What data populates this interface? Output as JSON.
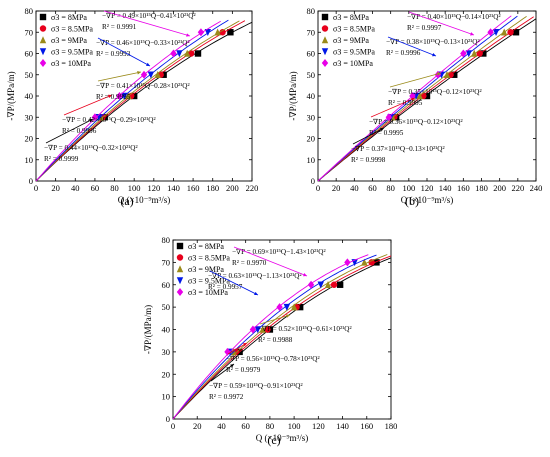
{
  "figure": {
    "panels": [
      {
        "id": "a",
        "label": "(a)"
      },
      {
        "id": "b",
        "label": "(b)"
      },
      {
        "id": "c",
        "label": "(c)"
      }
    ]
  },
  "chart_data": [
    {
      "panel": "(a)",
      "type": "scatter",
      "xlabel": "Q (×10⁻⁹m³/s)",
      "ylabel": "-∇P/(MPa/m)",
      "xlim": [
        0,
        220
      ],
      "ylim": [
        0,
        80
      ],
      "xticks": [
        0,
        20,
        40,
        60,
        80,
        100,
        120,
        140,
        160,
        180,
        200,
        220
      ],
      "yticks": [
        0,
        10,
        20,
        30,
        40,
        50,
        60,
        70,
        80
      ],
      "legend_position": "top-left",
      "series": [
        {
          "name": "σ3 = 8MPa",
          "marker": "square",
          "color": "#000000",
          "points": [
            [
              70,
              30
            ],
            [
              100,
              40
            ],
            [
              130,
              50
            ],
            [
              165,
              60
            ],
            [
              198,
              70
            ]
          ],
          "fit": "−∇P = 0.44×10¹⁵Q−0.32×10²¹Q²",
          "r2": "R² = 0.9999"
        },
        {
          "name": "σ3 = 8.5MPa",
          "marker": "circle",
          "color": "#e8001c",
          "points": [
            [
              68,
              30
            ],
            [
              97,
              40
            ],
            [
              127,
              50
            ],
            [
              158,
              60
            ],
            [
              190,
              70
            ]
          ],
          "fit": "−∇P = 0.42×10¹⁵Q−0.29×10²¹Q²",
          "r2": "R² = 0.9996"
        },
        {
          "name": "σ3 = 9MPa",
          "marker": "triangle-up",
          "color": "#9a8a1a",
          "points": [
            [
              66,
              30
            ],
            [
              94,
              40
            ],
            [
              124,
              50
            ],
            [
              154,
              60
            ],
            [
              185,
              70
            ]
          ],
          "fit": "−∇P = 0.41×10¹⁵Q−0.28×10²¹Q²",
          "r2": "R² = 0.9995"
        },
        {
          "name": "σ3 = 9.5MPa",
          "marker": "triangle-down",
          "color": "#0018e8",
          "points": [
            [
              64,
              30
            ],
            [
              90,
              40
            ],
            [
              117,
              50
            ],
            [
              146,
              60
            ],
            [
              175,
              70
            ]
          ],
          "fit": "−∇P = 0.46×10¹⁵Q−0.33×10²¹Q²",
          "r2": "R² = 0.9993"
        },
        {
          "name": "σ3 = 10MPa",
          "marker": "diamond",
          "color": "#e800e8",
          "points": [
            [
              60,
              30
            ],
            [
              85,
              40
            ],
            [
              110,
              50
            ],
            [
              140,
              60
            ],
            [
              168,
              70
            ]
          ],
          "fit": "−∇P = 0.49×10¹⁵Q−0.41×10²¹Q²",
          "r2": "R² = 0.9991"
        }
      ]
    },
    {
      "panel": "(b)",
      "type": "scatter",
      "xlabel": "Q (×10⁻⁹m³/s)",
      "ylabel": "-∇P/(MPa/m)",
      "xlim": [
        0,
        240
      ],
      "ylim": [
        0,
        80
      ],
      "xticks": [
        0,
        20,
        40,
        60,
        80,
        100,
        120,
        140,
        160,
        180,
        200,
        220,
        240
      ],
      "yticks": [
        0,
        10,
        20,
        30,
        40,
        50,
        60,
        70,
        80
      ],
      "legend_position": "top-left",
      "series": [
        {
          "name": "σ3 = 8MPa",
          "marker": "square",
          "color": "#000000",
          "points": [
            [
              86,
              30
            ],
            [
              120,
              40
            ],
            [
              150,
              50
            ],
            [
              182,
              60
            ],
            [
              218,
              70
            ]
          ],
          "fit": "−∇P = 0.37×10¹⁵Q−0.13×10²¹Q²",
          "r2": "R² = 0.9998"
        },
        {
          "name": "σ3 = 8.5MPa",
          "marker": "circle",
          "color": "#e8001c",
          "points": [
            [
              84,
              30
            ],
            [
              116,
              40
            ],
            [
              146,
              50
            ],
            [
              178,
              60
            ],
            [
              212,
              70
            ]
          ],
          "fit": "−∇P = 0.36×10¹⁵Q−0.12×10²¹Q²",
          "r2": "R² = 0.9995"
        },
        {
          "name": "σ3 = 9MPa",
          "marker": "triangle-up",
          "color": "#9a8a1a",
          "points": [
            [
              82,
              30
            ],
            [
              112,
              40
            ],
            [
              142,
              50
            ],
            [
              172,
              60
            ],
            [
              205,
              70
            ]
          ],
          "fit": "−∇P = 0.35×10¹⁵Q−0.12×10²¹Q²",
          "r2": "R² = 0.9995"
        },
        {
          "name": "σ3 = 9.5MPa",
          "marker": "triangle-down",
          "color": "#0018e8",
          "points": [
            [
              80,
              30
            ],
            [
              108,
              40
            ],
            [
              136,
              50
            ],
            [
              166,
              60
            ],
            [
              196,
              70
            ]
          ],
          "fit": "−∇P = 0.38×10¹⁵Q−0.13×10²¹Q²",
          "r2": "R² = 0.9996"
        },
        {
          "name": "σ3 = 10MPa",
          "marker": "diamond",
          "color": "#e800e8",
          "points": [
            [
              78,
              30
            ],
            [
              104,
              40
            ],
            [
              132,
              50
            ],
            [
              160,
              60
            ],
            [
              190,
              70
            ]
          ],
          "fit": "−∇P = 0.40×10¹⁵Q−0.14×10²¹Q²",
          "r2": "R² = 0.9997"
        }
      ]
    },
    {
      "panel": "(c)",
      "type": "scatter",
      "xlabel": "Q (×10⁻⁹m³/s)",
      "ylabel": "-∇P/(MPa/m)",
      "xlim": [
        0,
        180
      ],
      "ylim": [
        0,
        80
      ],
      "xticks": [
        0,
        20,
        40,
        60,
        80,
        100,
        120,
        140,
        160,
        180
      ],
      "yticks": [
        0,
        10,
        20,
        30,
        40,
        50,
        60,
        70,
        80
      ],
      "legend_position": "top-left",
      "series": [
        {
          "name": "σ3 = 8MPa",
          "marker": "square",
          "color": "#000000",
          "points": [
            [
              55,
              30
            ],
            [
              80,
              40
            ],
            [
              105,
              50
            ],
            [
              138,
              60
            ],
            [
              168,
              70
            ]
          ],
          "fit": "−∇P = 0.59×10¹⁵Q−0.91×10²¹Q²",
          "r2": "R² = 0.9972"
        },
        {
          "name": "σ3 = 8.5MPa",
          "marker": "circle",
          "color": "#e8001c",
          "points": [
            [
              52,
              30
            ],
            [
              78,
              40
            ],
            [
              102,
              50
            ],
            [
              133,
              60
            ],
            [
              164,
              70
            ]
          ],
          "fit": "−∇P = 0.56×10¹⁵Q−0.78×10²¹Q²",
          "r2": "R² = 0.9979"
        },
        {
          "name": "σ3 = 9MPa",
          "marker": "triangle-up",
          "color": "#9a8a1a",
          "points": [
            [
              50,
              30
            ],
            [
              74,
              40
            ],
            [
              100,
              50
            ],
            [
              128,
              60
            ],
            [
              158,
              70
            ]
          ],
          "fit": "−∇P = 0.52×10¹⁵Q−0.61×10²¹Q²",
          "r2": "R² = 0.9988"
        },
        {
          "name": "σ3 = 9.5MPa",
          "marker": "triangle-down",
          "color": "#0018e8",
          "points": [
            [
              47,
              30
            ],
            [
              70,
              40
            ],
            [
              94,
              50
            ],
            [
              122,
              60
            ],
            [
              150,
              70
            ]
          ],
          "fit": "−∇P = 0.63×10¹⁵Q−1.13×10²¹Q²",
          "r2": "R² = 0.9957"
        },
        {
          "name": "σ3 = 10MPa",
          "marker": "diamond",
          "color": "#e800e8",
          "points": [
            [
              45,
              30
            ],
            [
              66,
              40
            ],
            [
              88,
              50
            ],
            [
              114,
              60
            ],
            [
              144,
              70
            ]
          ],
          "fit": "−∇P = 0.69×10¹⁵Q−1.43×10²¹Q²",
          "r2": "R² = 0.9970"
        }
      ]
    }
  ]
}
